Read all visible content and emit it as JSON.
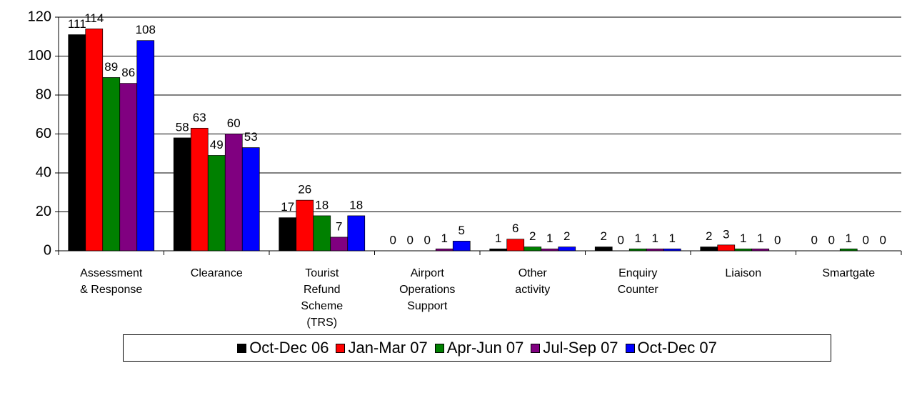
{
  "chart_data": {
    "type": "bar",
    "categories": [
      [
        "Assessment",
        "& Response"
      ],
      [
        "Clearance"
      ],
      [
        "Tourist",
        "Refund",
        "Scheme",
        "(TRS)"
      ],
      [
        "Airport",
        "Operations",
        "Support"
      ],
      [
        "Other",
        "activity"
      ],
      [
        "Enquiry",
        "Counter"
      ],
      [
        "Liaison"
      ],
      [
        "Smartgate"
      ]
    ],
    "series": [
      {
        "name": "Oct-Dec 06",
        "color": "#000000",
        "values": [
          111,
          58,
          17,
          0,
          1,
          2,
          2,
          0
        ]
      },
      {
        "name": "Jan-Mar 07",
        "color": "#ff0000",
        "values": [
          114,
          63,
          26,
          0,
          6,
          0,
          3,
          0
        ]
      },
      {
        "name": "Apr-Jun 07",
        "color": "#008000",
        "values": [
          89,
          49,
          18,
          0,
          2,
          1,
          1,
          1
        ]
      },
      {
        "name": "Jul-Sep 07",
        "color": "#800080",
        "values": [
          86,
          60,
          7,
          1,
          1,
          1,
          1,
          0
        ]
      },
      {
        "name": "Oct-Dec 07",
        "color": "#0000ff",
        "values": [
          108,
          53,
          18,
          5,
          2,
          1,
          0,
          0
        ]
      }
    ],
    "ylim": [
      0,
      120
    ],
    "yticks": [
      0,
      20,
      40,
      60,
      80,
      100,
      120
    ],
    "grid": true,
    "legend": "bottom"
  }
}
